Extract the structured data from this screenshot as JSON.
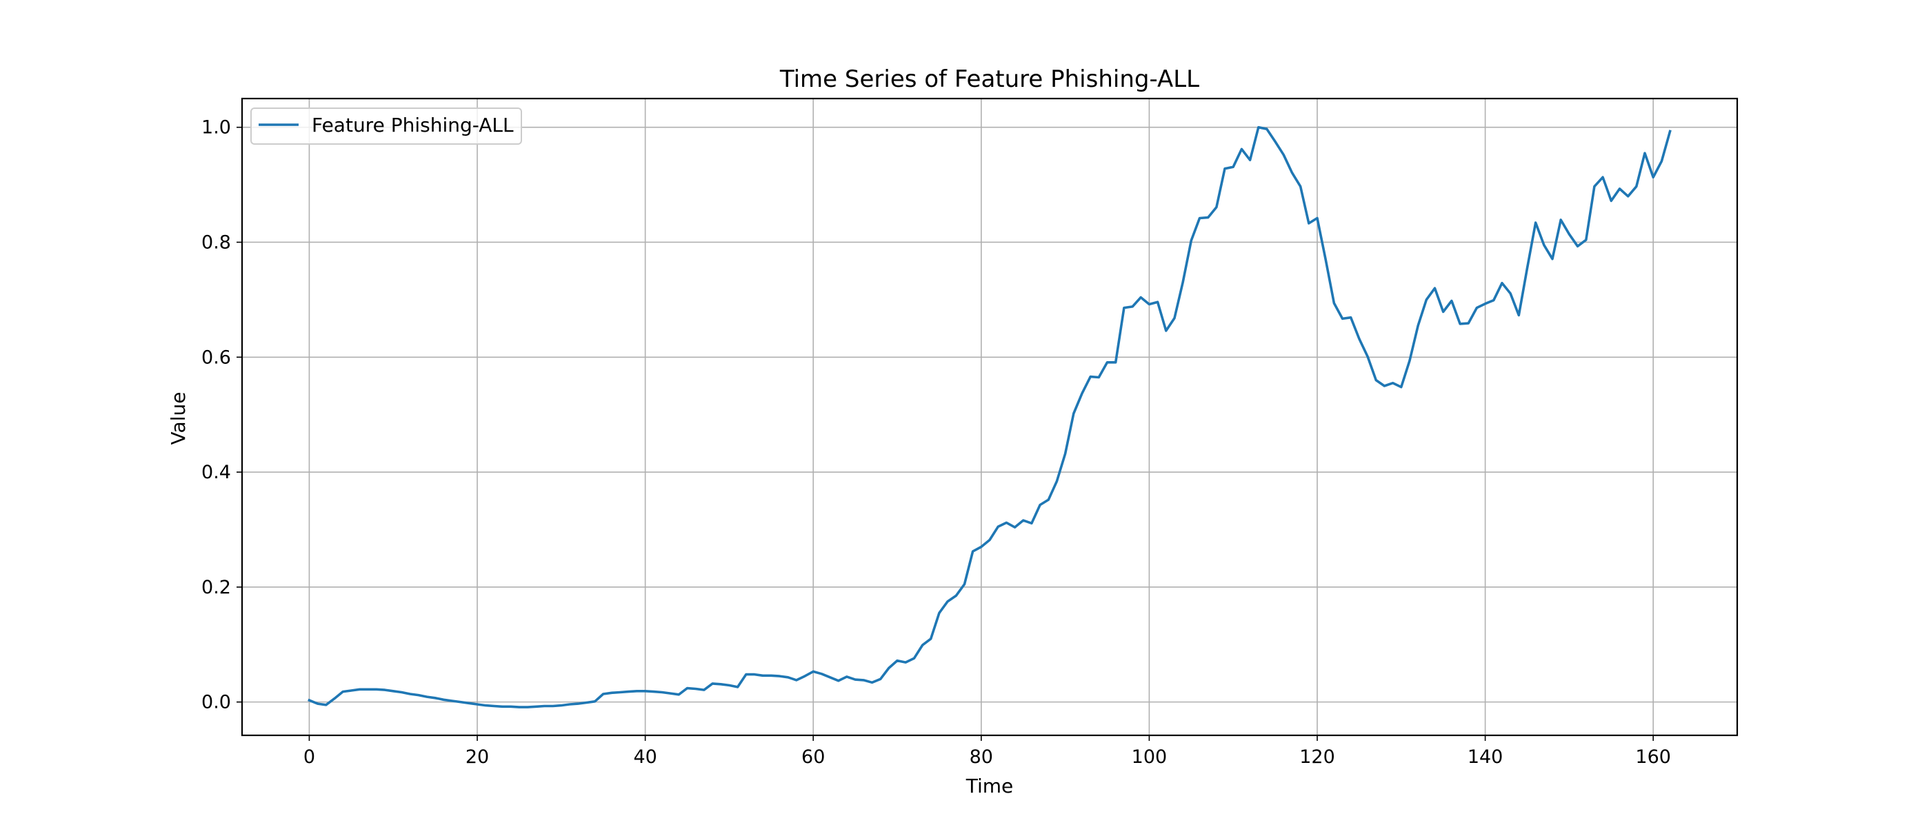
{
  "chart_data": {
    "type": "line",
    "title": "Time Series of Feature Phishing-ALL",
    "xlabel": "Time",
    "ylabel": "Value",
    "xlim": [
      -8,
      170
    ],
    "ylim": [
      -0.058,
      1.05
    ],
    "xticks": [
      0,
      20,
      40,
      60,
      80,
      100,
      120,
      140,
      160
    ],
    "yticks": [
      0.0,
      0.2,
      0.4,
      0.6,
      0.8,
      1.0
    ],
    "xtick_labels": [
      "0",
      "20",
      "40",
      "60",
      "80",
      "100",
      "120",
      "140",
      "160"
    ],
    "ytick_labels": [
      "0.0",
      "0.2",
      "0.4",
      "0.6",
      "0.8",
      "1.0"
    ],
    "grid": true,
    "legend_position": "upper-left",
    "series": [
      {
        "name": "Feature Phishing-ALL",
        "color": "#1f77b4",
        "x": [
          0,
          1,
          2,
          3,
          4,
          5,
          6,
          7,
          8,
          9,
          10,
          11,
          12,
          13,
          14,
          15,
          16,
          17,
          18,
          19,
          20,
          21,
          22,
          23,
          24,
          25,
          26,
          27,
          28,
          29,
          30,
          31,
          32,
          33,
          34,
          35,
          36,
          37,
          38,
          39,
          40,
          41,
          42,
          43,
          44,
          45,
          46,
          47,
          48,
          49,
          50,
          51,
          52,
          53,
          54,
          55,
          56,
          57,
          58,
          59,
          60,
          61,
          62,
          63,
          64,
          65,
          66,
          67,
          68,
          69,
          70,
          71,
          72,
          73,
          74,
          75,
          76,
          77,
          78,
          79,
          80,
          81,
          82,
          83,
          84,
          85,
          86,
          87,
          88,
          89,
          90,
          91,
          92,
          93,
          94,
          95,
          96,
          97,
          98,
          99,
          100,
          101,
          102,
          103,
          104,
          105,
          106,
          107,
          108,
          109,
          110,
          111,
          112,
          113,
          114,
          115,
          116,
          117,
          118,
          119,
          120,
          121,
          122,
          123,
          124,
          125,
          126,
          127,
          128,
          129,
          130,
          131,
          132,
          133,
          134,
          135,
          136,
          137,
          138,
          139,
          140,
          141,
          142,
          143,
          144,
          145,
          146,
          147,
          148,
          149,
          150,
          151,
          152,
          153,
          154,
          155,
          156,
          157,
          158,
          159,
          160,
          161,
          162
        ],
        "values": [
          0.003,
          -0.003,
          -0.005,
          0.006,
          0.018,
          0.02,
          0.022,
          0.022,
          0.022,
          0.021,
          0.019,
          0.017,
          0.014,
          0.012,
          0.009,
          0.007,
          0.004,
          0.002,
          0.0,
          -0.002,
          -0.004,
          -0.006,
          -0.007,
          -0.008,
          -0.008,
          -0.009,
          -0.009,
          -0.008,
          -0.007,
          -0.007,
          -0.006,
          -0.004,
          -0.003,
          -0.001,
          0.001,
          0.014,
          0.016,
          0.017,
          0.018,
          0.019,
          0.019,
          0.018,
          0.017,
          0.015,
          0.013,
          0.024,
          0.023,
          0.021,
          0.032,
          0.031,
          0.029,
          0.026,
          0.048,
          0.048,
          0.046,
          0.046,
          0.045,
          0.043,
          0.038,
          0.045,
          0.053,
          0.049,
          0.043,
          0.037,
          0.044,
          0.039,
          0.038,
          0.034,
          0.04,
          0.059,
          0.072,
          0.069,
          0.076,
          0.099,
          0.11,
          0.155,
          0.175,
          0.185,
          0.205,
          0.262,
          0.27,
          0.282,
          0.305,
          0.312,
          0.304,
          0.316,
          0.311,
          0.343,
          0.352,
          0.384,
          0.432,
          0.502,
          0.537,
          0.566,
          0.565,
          0.591,
          0.591,
          0.686,
          0.688,
          0.704,
          0.692,
          0.696,
          0.646,
          0.668,
          0.73,
          0.803,
          0.842,
          0.843,
          0.861,
          0.928,
          0.931,
          0.962,
          0.943,
          1.0,
          0.997,
          0.975,
          0.952,
          0.921,
          0.897,
          0.833,
          0.842,
          0.77,
          0.694,
          0.667,
          0.669,
          0.632,
          0.601,
          0.56,
          0.55,
          0.555,
          0.548,
          0.594,
          0.655,
          0.7,
          0.72,
          0.679,
          0.698,
          0.658,
          0.659,
          0.686,
          0.693,
          0.699,
          0.729,
          0.711,
          0.673,
          0.755,
          0.834,
          0.795,
          0.771,
          0.839,
          0.814,
          0.793,
          0.804,
          0.897,
          0.913,
          0.872,
          0.893,
          0.88,
          0.897,
          0.955,
          0.913,
          0.941,
          0.993
        ]
      }
    ]
  }
}
